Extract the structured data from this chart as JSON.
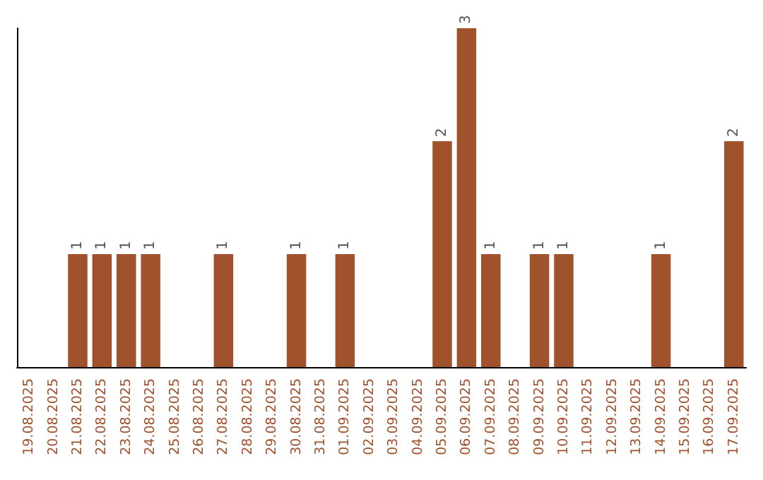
{
  "chart_data": {
    "type": "bar",
    "categories": [
      "19.08.2025",
      "20.08.2025",
      "21.08.2025",
      "22.08.2025",
      "23.08.2025",
      "24.08.2025",
      "25.08.2025",
      "26.08.2025",
      "27.08.2025",
      "28.08.2025",
      "29.08.2025",
      "30.08.2025",
      "31.08.2025",
      "01.09.2025",
      "02.09.2025",
      "03.09.2025",
      "04.09.2025",
      "05.09.2025",
      "06.09.2025",
      "07.09.2025",
      "08.09.2025",
      "09.09.2025",
      "10.09.2025",
      "11.09.2025",
      "12.09.2025",
      "13.09.2025",
      "14.09.2025",
      "15.09.2025",
      "16.09.2025",
      "17.09.2025"
    ],
    "values": [
      0,
      0,
      1,
      1,
      1,
      1,
      0,
      0,
      1,
      0,
      0,
      1,
      0,
      1,
      0,
      0,
      0,
      2,
      3,
      1,
      0,
      1,
      1,
      0,
      0,
      0,
      1,
      0,
      0,
      2
    ],
    "value_labels": [
      null,
      null,
      "1",
      "1",
      "1",
      "1",
      null,
      null,
      "1",
      null,
      null,
      "1",
      null,
      "1",
      null,
      null,
      null,
      "2",
      "3",
      "1",
      null,
      "1",
      "1",
      null,
      null,
      null,
      "1",
      null,
      null,
      "2"
    ],
    "color": "#a0522d",
    "ylim": [
      0,
      3
    ],
    "tick_labels": "x"
  }
}
